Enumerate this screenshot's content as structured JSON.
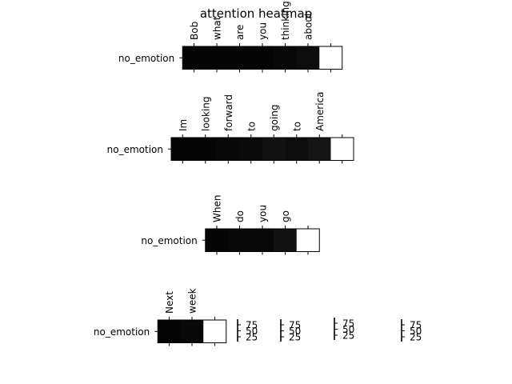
{
  "chart_data": {
    "type": "heatmap",
    "title": "attention heatmap",
    "colormap": "grayscale (black = low, white = high)",
    "grid": false,
    "panels": [
      {
        "row_label": "no_emotion",
        "tokens": [
          "Bob",
          "what",
          "are",
          "you",
          "thinking",
          "about",
          ""
        ],
        "values": [
          0.02,
          0.02,
          0.02,
          0.02,
          0.03,
          0.05,
          1.0
        ]
      },
      {
        "row_label": "no_emotion",
        "tokens": [
          "Im",
          "looking",
          "forward",
          "to",
          "going",
          "to",
          "America",
          ""
        ],
        "values": [
          0.02,
          0.02,
          0.03,
          0.04,
          0.07,
          0.05,
          0.08,
          1.0
        ]
      },
      {
        "row_label": "no_emotion",
        "tokens": [
          "When",
          "do",
          "you",
          "go",
          ""
        ],
        "values": [
          0.02,
          0.03,
          0.03,
          0.07,
          1.0
        ]
      },
      {
        "row_label": "no_emotion",
        "tokens": [
          "Next",
          "week",
          ""
        ],
        "values": [
          0.02,
          0.03,
          1.0
        ]
      }
    ],
    "colorbars": [
      {
        "ticks": [
          "75",
          "50",
          "25"
        ]
      },
      {
        "ticks": [
          "75",
          "50",
          "25"
        ]
      },
      {
        "ticks": [
          "75",
          "50",
          "25"
        ]
      },
      {
        "ticks": [
          "75",
          "50",
          "25"
        ]
      }
    ]
  }
}
